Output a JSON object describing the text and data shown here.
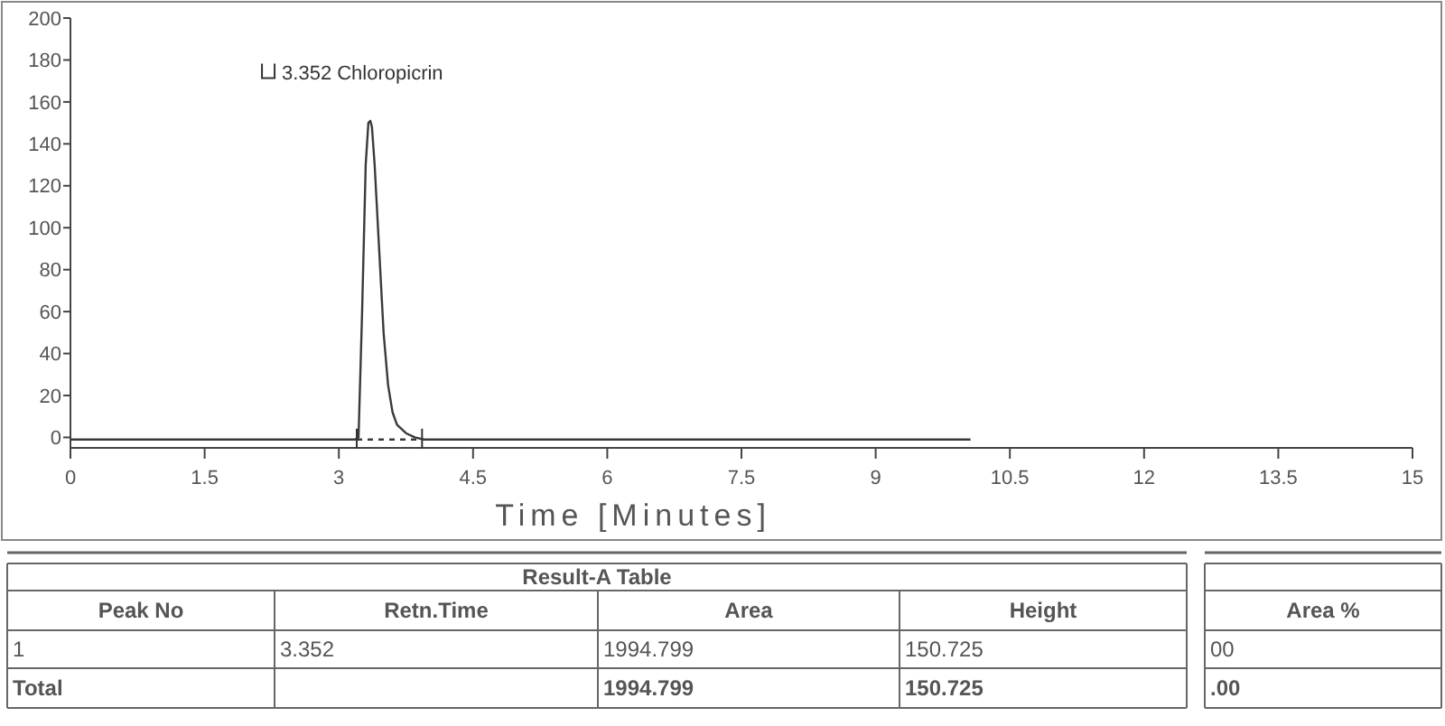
{
  "chart_data": {
    "type": "line",
    "xlabel": "Time   [Minutes]",
    "xlim": [
      0,
      15
    ],
    "xticks": [
      0,
      1.5,
      3,
      4.5,
      6,
      7.5,
      9,
      10.5,
      12,
      13.5,
      15
    ],
    "ylim": [
      -5,
      200
    ],
    "yticks": [
      0,
      20,
      40,
      60,
      80,
      100,
      120,
      140,
      160,
      180,
      200
    ],
    "grid": false,
    "series": [
      {
        "color": "#3a3a3a",
        "line_style": "solid",
        "x": [
          0,
          3.18,
          3.22,
          3.26,
          3.3,
          3.33,
          3.352,
          3.37,
          3.4,
          3.45,
          3.5,
          3.55,
          3.6,
          3.65,
          3.75,
          3.85,
          3.95,
          10.06
        ],
        "values": [
          -1,
          -1,
          0,
          60,
          130,
          150,
          151,
          148,
          130,
          90,
          50,
          25,
          12,
          6,
          2,
          0,
          -1,
          -1
        ]
      },
      {
        "color": "#3a3a3a",
        "line_style": "dashed",
        "x": [
          3.2,
          3.93
        ],
        "values": [
          -1,
          -1
        ]
      }
    ],
    "annotations": [
      {
        "text": "3.352  Chloropicrin",
        "x": 3.352,
        "y": 150.725
      },
      "Result-A Table",
      "Peak No",
      "Retn.Time",
      "Area",
      "Height",
      "Area %",
      "1",
      "3.352",
      "1994.799",
      "150.725",
      "00",
      "Total",
      "1994.799",
      "150.725",
      ".00"
    ]
  }
}
